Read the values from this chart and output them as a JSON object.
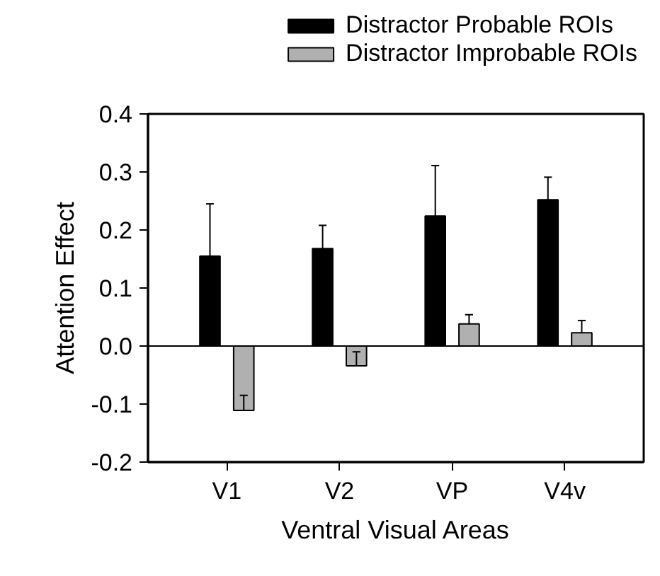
{
  "chart_data": {
    "type": "bar",
    "xlabel": "Ventral Visual Areas",
    "ylabel": "Attention Effect",
    "categories": [
      "V1",
      "V2",
      "VP",
      "V4v"
    ],
    "series": [
      {
        "name": "Distractor Probable ROIs",
        "color": "#000000",
        "values": [
          0.155,
          0.168,
          0.224,
          0.252
        ],
        "errors": [
          [
            0.155,
            0.245
          ],
          [
            0.168,
            0.208
          ],
          [
            0.224,
            0.311
          ],
          [
            0.252,
            0.291
          ]
        ]
      },
      {
        "name": "Distractor Improbable ROIs",
        "color": "#b0b0b0",
        "values": [
          -0.111,
          -0.034,
          0.038,
          0.023
        ],
        "errors": [
          [
            -0.111,
            -0.085
          ],
          [
            -0.034,
            -0.01
          ],
          [
            0.038,
            0.054
          ],
          [
            0.023,
            0.044
          ]
        ]
      }
    ],
    "ylim": [
      -0.2,
      0.4
    ],
    "yticks": [
      {
        "value": -0.2,
        "label": "-0.2"
      },
      {
        "value": -0.1,
        "label": "-0.1"
      },
      {
        "value": 0,
        "label": "0.0"
      },
      {
        "value": 0.1,
        "label": "0.1"
      },
      {
        "value": 0.2,
        "label": "0.2"
      },
      {
        "value": 0.3,
        "label": "0.3"
      },
      {
        "value": 0.4,
        "label": "0.4"
      }
    ],
    "ref_lines": [
      {
        "axis": "y",
        "value": 0,
        "color": "#000000"
      }
    ],
    "legend": "top",
    "grid": false
  }
}
